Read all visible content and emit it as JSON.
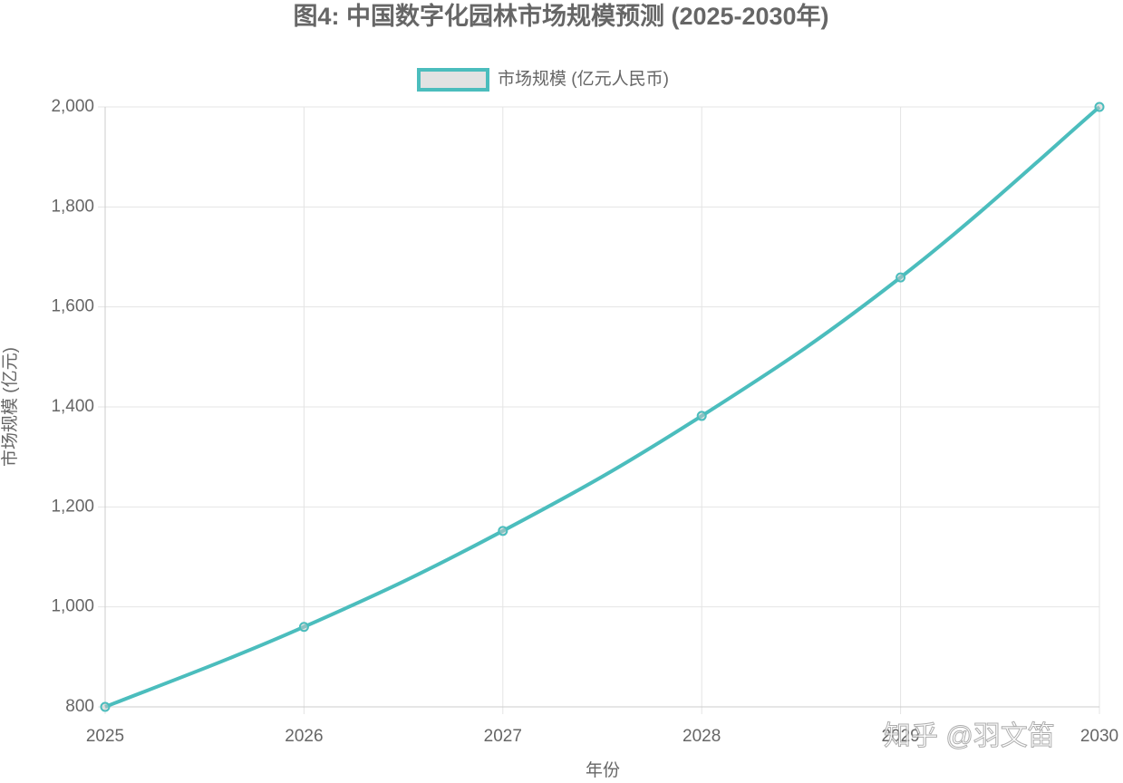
{
  "chart_data": {
    "type": "line",
    "title": "图4: 中国数字化园林市场规模预测 (2025-2030年)",
    "x_label": "年份",
    "y_label": "市场规模 (亿元)",
    "categories": [
      "2025",
      "2026",
      "2027",
      "2028",
      "2029",
      "2030"
    ],
    "series": [
      {
        "name": "市场规模 (亿元人民币)",
        "color": "#4bbdbd",
        "legend_fill": "#e2e2e2",
        "values": [
          800,
          960,
          1152,
          1382,
          1659,
          2000
        ]
      }
    ],
    "ylim": [
      800,
      2000
    ],
    "yticks": [
      {
        "value": 800,
        "label": "800"
      },
      {
        "value": 1000,
        "label": "1,000"
      },
      {
        "value": 1200,
        "label": "1,200"
      },
      {
        "value": 1400,
        "label": "1,400"
      },
      {
        "value": 1600,
        "label": "1,600"
      },
      {
        "value": 1800,
        "label": "1,800"
      },
      {
        "value": 2000,
        "label": "2,000"
      }
    ],
    "grid": true,
    "legend": "top",
    "watermark": "知乎 @羽文笛"
  }
}
